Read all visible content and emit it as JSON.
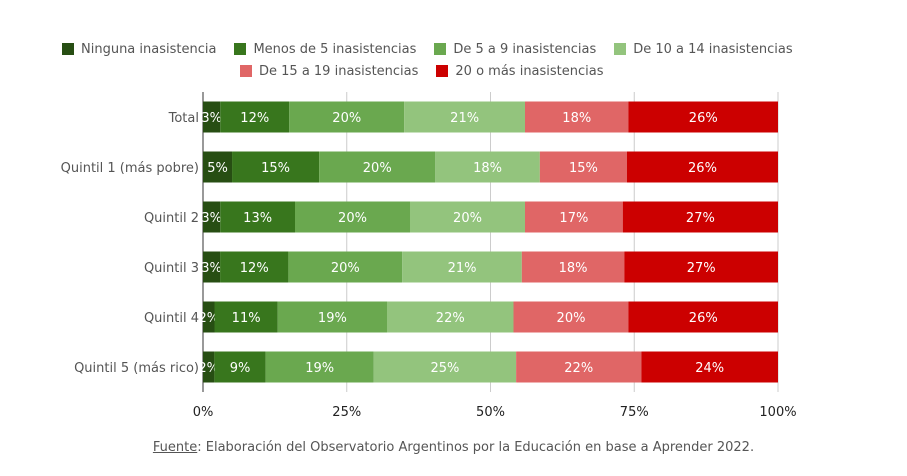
{
  "chart_data": {
    "type": "bar",
    "orientation": "horizontal",
    "stacked": "percent",
    "categories": [
      "Total",
      "Quintil 1 (más pobre)",
      "Quintil 2",
      "Quintil 3",
      "Quintil 4",
      "Quintil 5 (más rico)"
    ],
    "series": [
      {
        "name": "Ninguna inasistencia",
        "color": "#274e13",
        "values": [
          3,
          5,
          3,
          3,
          2,
          2
        ],
        "labels": [
          "3%",
          "5%",
          "3%",
          "3%",
          "2%",
          "2%"
        ]
      },
      {
        "name": "Menos de 5 inasistencias",
        "color": "#38761d",
        "values": [
          12,
          15,
          13,
          12,
          11,
          9
        ],
        "labels": [
          "12%",
          "15%",
          "13%",
          "12%",
          "11%",
          "9%"
        ]
      },
      {
        "name": "De 5 a 9 inasistencias",
        "color": "#6aa84f",
        "values": [
          20,
          20,
          20,
          20,
          19,
          19
        ],
        "labels": [
          "20%",
          "20%",
          "20%",
          "20%",
          "19%",
          "19%"
        ]
      },
      {
        "name": "De 10 a 14 inasistencias",
        "color": "#93c47d",
        "values": [
          21,
          18,
          20,
          21,
          22,
          25
        ],
        "labels": [
          "21%",
          "18%",
          "20%",
          "21%",
          "22%",
          "25%"
        ]
      },
      {
        "name": "De 15 a 19 inasistencias",
        "color": "#e06666",
        "values": [
          18,
          15,
          17,
          18,
          20,
          22
        ],
        "labels": [
          "18%",
          "15%",
          "17%",
          "18%",
          "20%",
          "22%"
        ]
      },
      {
        "name": "20 o más inasistencias",
        "color": "#cc0000",
        "values": [
          26,
          26,
          27,
          27,
          26,
          24
        ],
        "labels": [
          "26%",
          "26%",
          "27%",
          "27%",
          "26%",
          "24%"
        ]
      }
    ],
    "xlim": [
      0,
      100
    ],
    "x_ticks": [
      "0%",
      "25%",
      "50%",
      "75%",
      "100%"
    ],
    "grid": "vertical",
    "legend_position": "top"
  },
  "footer": {
    "source_label": "Fuente",
    "source_text": ": Elaboración del Observatorio Argentinos por la Educación en base a Aprender 2022."
  }
}
